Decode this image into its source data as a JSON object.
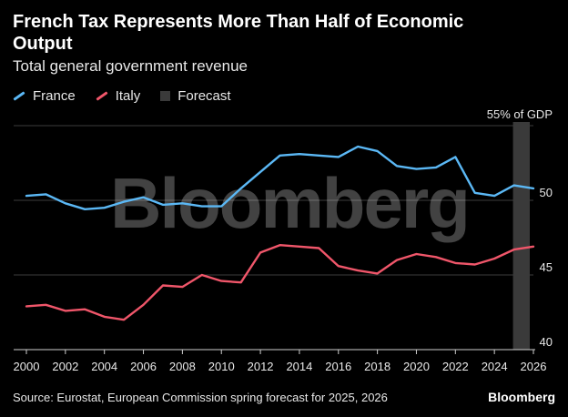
{
  "header": {
    "title": "French Tax Represents More Than Half of Economic Output",
    "subtitle": "Total general government revenue"
  },
  "legend": [
    {
      "label": "France",
      "color": "#5bb8f5",
      "kind": "line"
    },
    {
      "label": "Italy",
      "color": "#f0566a",
      "kind": "line"
    },
    {
      "label": "Forecast",
      "color": "#3a3a3a",
      "kind": "box"
    }
  ],
  "footer": {
    "source": "Source: Eurostat, European Commission spring forecast for 2025, 2026",
    "brand": "Bloomberg"
  },
  "watermark": "Bloomberg",
  "chart_data": {
    "type": "line",
    "title": "French Tax Represents More Than Half of Economic Output",
    "subtitle": "Total general government revenue",
    "x": [
      2000,
      2001,
      2002,
      2003,
      2004,
      2005,
      2006,
      2007,
      2008,
      2009,
      2010,
      2011,
      2012,
      2013,
      2014,
      2015,
      2016,
      2017,
      2018,
      2019,
      2020,
      2021,
      2022,
      2023,
      2024,
      2025,
      2026
    ],
    "series": [
      {
        "name": "France",
        "color": "#5bb8f5",
        "values": [
          50.3,
          50.4,
          49.8,
          49.4,
          49.5,
          49.9,
          50.2,
          49.7,
          49.8,
          49.6,
          49.6,
          50.8,
          51.9,
          53.0,
          53.1,
          53.0,
          52.9,
          53.6,
          53.3,
          52.3,
          52.1,
          52.2,
          52.9,
          50.5,
          50.3,
          51.0,
          50.8
        ]
      },
      {
        "name": "Italy",
        "color": "#f0566a",
        "values": [
          42.9,
          43.0,
          42.6,
          42.7,
          42.2,
          42.0,
          43.0,
          44.3,
          44.2,
          45.0,
          44.6,
          44.5,
          46.5,
          47.0,
          46.9,
          46.8,
          45.6,
          45.3,
          45.1,
          46.0,
          46.4,
          46.2,
          45.8,
          45.7,
          46.1,
          46.7,
          46.9
        ]
      }
    ],
    "forecast": {
      "label": "Forecast",
      "from": 2025,
      "to": 2026,
      "color": "#3a3a3a"
    },
    "xlim": [
      2000,
      2026
    ],
    "ylim": [
      40,
      55
    ],
    "x_ticks": [
      2000,
      2002,
      2004,
      2006,
      2008,
      2010,
      2012,
      2014,
      2016,
      2018,
      2020,
      2022,
      2024,
      2026
    ],
    "y_ticks": [
      {
        "value": 40,
        "label": "40"
      },
      {
        "value": 45,
        "label": "45"
      },
      {
        "value": 50,
        "label": "50"
      },
      {
        "value": 55,
        "label": "55% of GDP"
      }
    ],
    "grid": "horizontal",
    "legend_position": "top-left"
  }
}
